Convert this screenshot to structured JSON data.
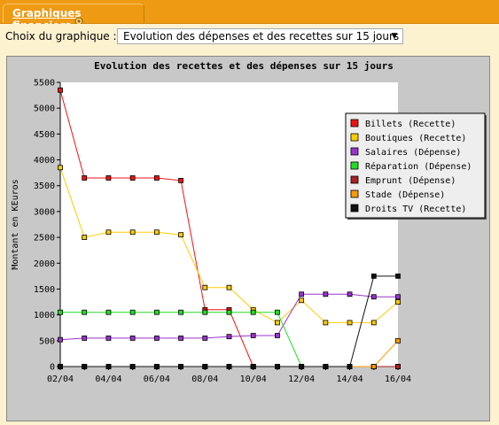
{
  "tab": {
    "label": "Graphiques financiers"
  },
  "chooser": {
    "label": "Choix du graphique :",
    "selected": "Evolution des dépenses et des recettes sur 15 jours"
  },
  "chart_data": {
    "type": "line",
    "title": "Evolution des recettes et des dépenses sur 15 jours",
    "xlabel": "",
    "ylabel": "Montant en KEuros",
    "ylim": [
      0,
      5500
    ],
    "yticks": [
      0,
      500,
      1000,
      1500,
      2000,
      2500,
      3000,
      3500,
      4000,
      4500,
      5000,
      5500
    ],
    "x": [
      "02/04",
      "03/04",
      "04/04",
      "05/04",
      "06/04",
      "07/04",
      "08/04",
      "09/04",
      "10/04",
      "11/04",
      "12/04",
      "13/04",
      "14/04",
      "15/04",
      "16/04"
    ],
    "xtick_labels": [
      "02/04",
      "04/04",
      "06/04",
      "08/04",
      "10/04",
      "12/04",
      "14/04",
      "16/04"
    ],
    "grid": false,
    "legend_position": "top-right",
    "series": [
      {
        "name": "Billets (Recette)",
        "color": "#ee1111",
        "values": [
          5350,
          3650,
          3650,
          3650,
          3650,
          3600,
          1100,
          1100,
          0,
          0,
          0,
          0,
          0,
          0,
          0
        ]
      },
      {
        "name": "Boutiques (Recette)",
        "color": "#ffcc00",
        "values": [
          3850,
          2500,
          2600,
          2600,
          2600,
          2550,
          1530,
          1530,
          1100,
          850,
          1280,
          850,
          850,
          850,
          1250
        ]
      },
      {
        "name": "Salaires (Dépense)",
        "color": "#9933cc",
        "values": [
          520,
          550,
          550,
          550,
          550,
          550,
          550,
          580,
          600,
          600,
          1400,
          1400,
          1400,
          1350,
          1350
        ]
      },
      {
        "name": "Réparation (Dépense)",
        "color": "#22dd22",
        "values": [
          1050,
          1050,
          1050,
          1050,
          1050,
          1050,
          1050,
          1050,
          1050,
          1050,
          0,
          0,
          0,
          0,
          0
        ]
      },
      {
        "name": "Emprunt (Dépense)",
        "color": "#aa2222",
        "values": [
          0,
          0,
          0,
          0,
          0,
          0,
          0,
          0,
          0,
          0,
          0,
          0,
          0,
          0,
          0
        ]
      },
      {
        "name": "Stade (Dépense)",
        "color": "#ff9900",
        "values": [
          0,
          0,
          0,
          0,
          0,
          0,
          0,
          0,
          0,
          0,
          0,
          0,
          0,
          0,
          500
        ]
      },
      {
        "name": "Droits TV (Recette)",
        "color": "#111111",
        "values": [
          0,
          0,
          0,
          0,
          0,
          0,
          0,
          0,
          0,
          0,
          0,
          0,
          0,
          1750,
          1750
        ]
      }
    ]
  }
}
